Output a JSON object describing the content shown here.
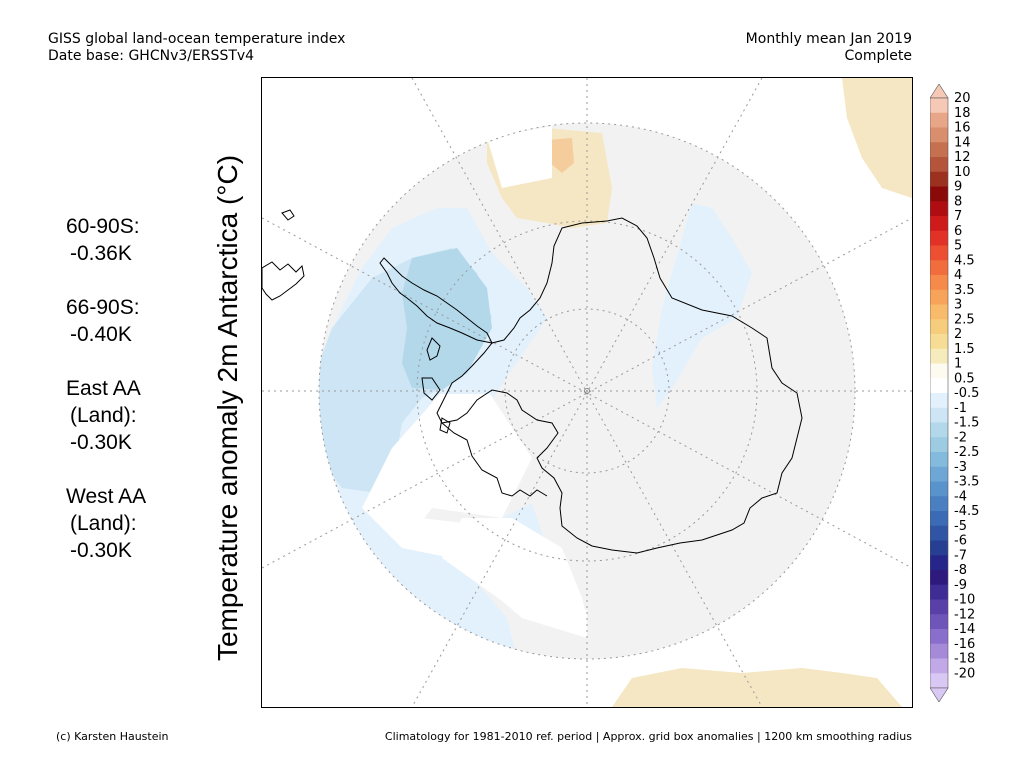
{
  "header": {
    "line1_left": "GISS global land-ocean temperature index",
    "line2_left": "Date base: GHCNv3/ERSSTv4",
    "line1_right": "Monthly mean Jan 2019",
    "line2_right": "Complete"
  },
  "stats": [
    {
      "label": "60-90S:",
      "value": "-0.36K"
    },
    {
      "label": "66-90S:",
      "value": "-0.40K"
    },
    {
      "label": "East AA",
      "label2": "(Land):",
      "value": "-0.30K"
    },
    {
      "label": "West AA",
      "label2": "(Land):",
      "value": "-0.30K"
    }
  ],
  "map": {
    "ylabel": "Temperature anomaly 2m Antarctica (°C)",
    "projection": "south-polar-stereographic"
  },
  "colorbar": {
    "labels": [
      "20",
      "18",
      "16",
      "14",
      "12",
      "10",
      "9",
      "8",
      "7",
      "6",
      "5",
      "4.5",
      "4",
      "3.5",
      "3",
      "2.5",
      "2",
      "1.5",
      "1",
      "0.5",
      "-0.5",
      "-1",
      "-1.5",
      "-2",
      "-2.5",
      "-3",
      "-3.5",
      "-4",
      "-4.5",
      "-5",
      "-6",
      "-7",
      "-8",
      "-9",
      "-10",
      "-12",
      "-14",
      "-16",
      "-18",
      "-20"
    ],
    "colors": [
      "#f6c9b6",
      "#e8a688",
      "#d98e6e",
      "#c5704f",
      "#b4543a",
      "#9c3120",
      "#8a0a0a",
      "#b00d12",
      "#cf1a1c",
      "#e23126",
      "#ec4f32",
      "#f26d3d",
      "#f58a4a",
      "#f7a35a",
      "#f8bb6b",
      "#f5cd7c",
      "#f6dc94",
      "#f5ebbc",
      "#fdfaf0",
      "#ffffff",
      "#e3f1fc",
      "#cde5f4",
      "#b3d8ea",
      "#9ccbe2",
      "#84bbdc",
      "#6ea7d5",
      "#5993cc",
      "#4a7fc2",
      "#3c6bb5",
      "#2f55a4",
      "#263f92",
      "#26268a",
      "#2e1a7e",
      "#3f2c95",
      "#5840a8",
      "#6e55ba",
      "#8a6ecb",
      "#a58ad8",
      "#c0a9e6",
      "#d9c8f4"
    ],
    "top_arrow_color": "#f6c9b6",
    "bottom_arrow_color": "#d9c8f4"
  },
  "footer": {
    "left": "(c) Karsten Haustein",
    "right": "Climatology for 1981-2010 ref. period | Approx. grid box anomalies | 1200 km smoothing radius"
  }
}
